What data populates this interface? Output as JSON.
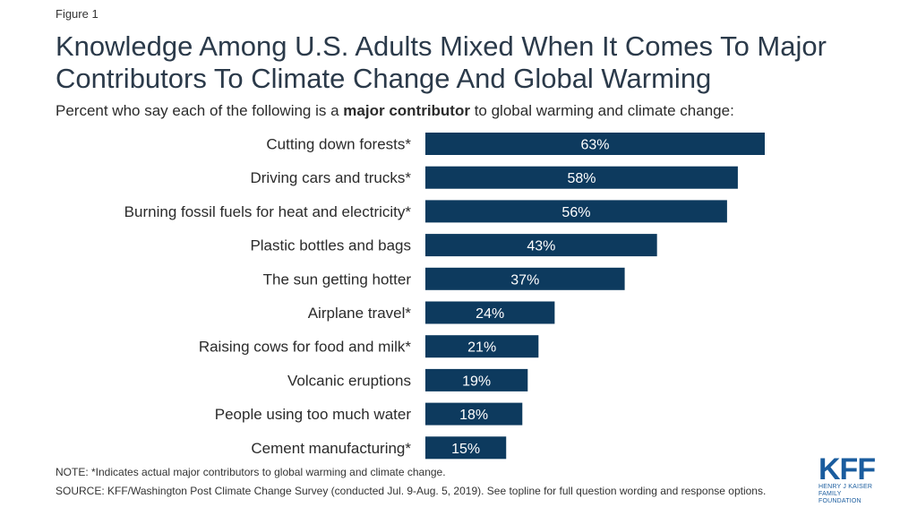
{
  "figure_label": "Figure 1",
  "title": "Knowledge Among U.S. Adults Mixed When It Comes To Major Contributors To Climate Change And Global Warming",
  "subtitle": {
    "before": "Percent who say each of the following is a ",
    "bold": "major contributor",
    "after": " to global warming and climate change:"
  },
  "chart_data": {
    "type": "bar",
    "orientation": "horizontal",
    "categories": [
      "Cutting down forests*",
      "Driving cars and trucks*",
      "Burning fossil fuels for heat and electricity*",
      "Plastic bottles and bags",
      "The sun getting hotter",
      "Airplane travel*",
      "Raising cows for food and milk*",
      "Volcanic eruptions",
      "People using too much water",
      "Cement manufacturing*"
    ],
    "values": [
      63,
      58,
      56,
      43,
      37,
      24,
      21,
      19,
      18,
      15
    ],
    "value_labels": [
      "63%",
      "58%",
      "56%",
      "43%",
      "37%",
      "24%",
      "21%",
      "19%",
      "18%",
      "15%"
    ],
    "bar_color": "#0d3a5e",
    "xlim": [
      0,
      63
    ]
  },
  "note": "NOTE: *Indicates actual major contributors to global warming and climate change.",
  "source": "SOURCE: KFF/Washington Post Climate Change Survey (conducted Jul. 9-Aug. 5, 2019). See topline for full question wording and response options.",
  "logo": {
    "mark": "KFF",
    "line1": "HENRY J KAISER",
    "line2": "FAMILY FOUNDATION",
    "color": "#1a5c9e"
  }
}
